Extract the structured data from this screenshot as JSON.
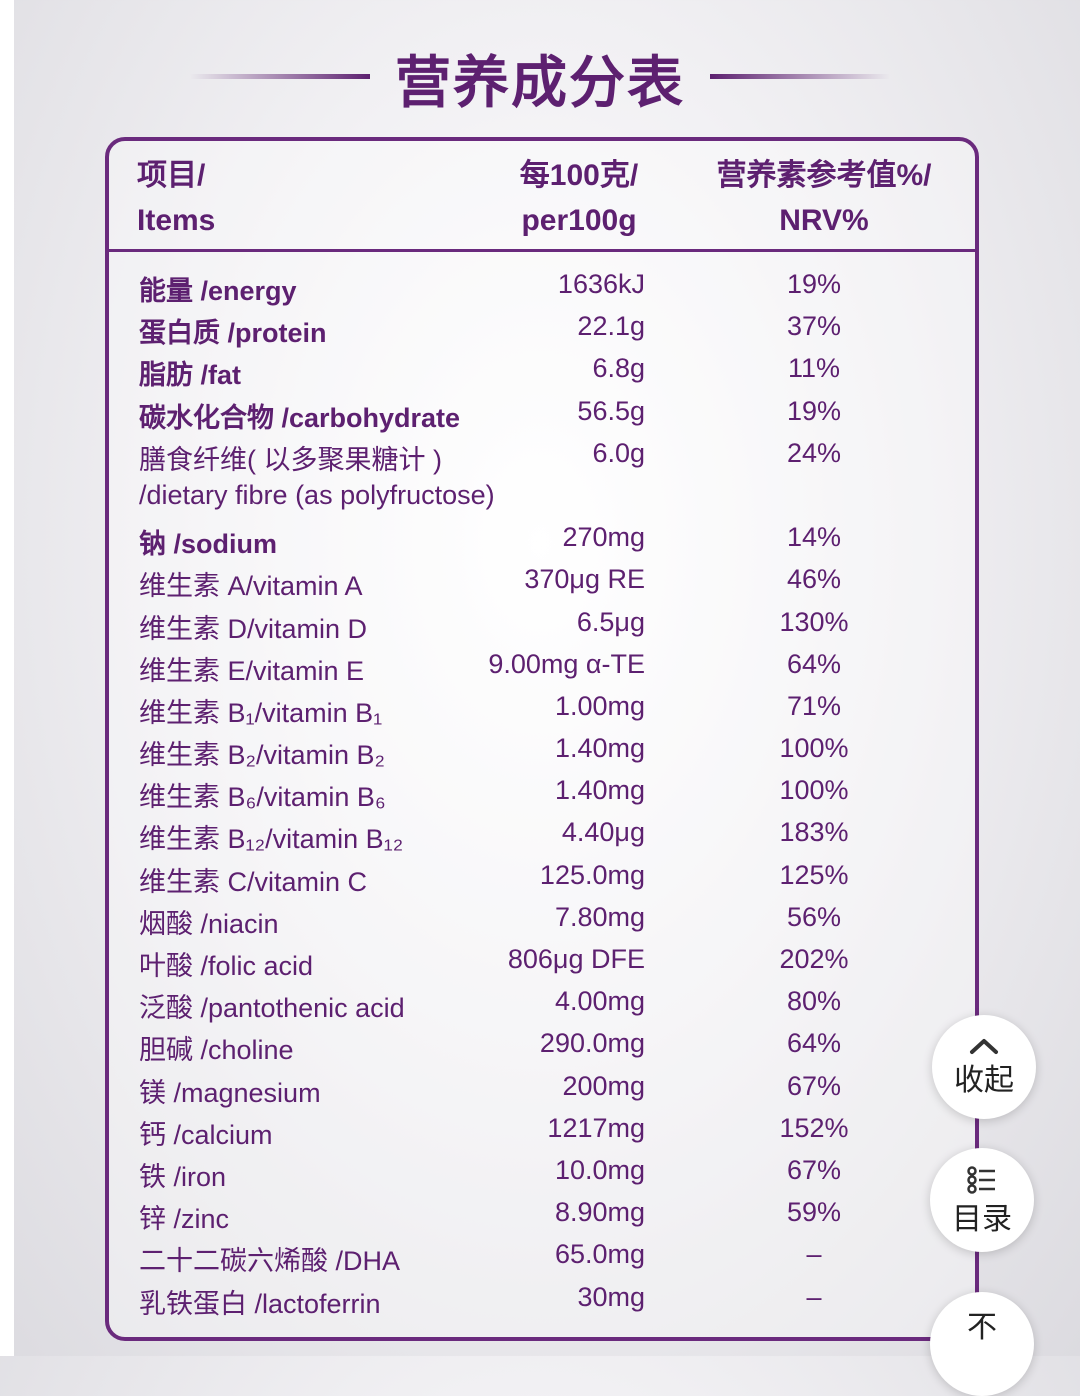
{
  "title": "营养成分表",
  "headers": {
    "item_cn": "项目/",
    "item_en": "Items",
    "per_cn": "每100克/",
    "per_en": "per100g",
    "nrv_cn": "营养素参考值%/",
    "nrv_en": "NRV%"
  },
  "rows": [
    {
      "name": "能量 /energy",
      "value": "1636kJ",
      "nrv": "19%",
      "bold": true
    },
    {
      "name": "蛋白质 /protein",
      "value": "22.1g",
      "nrv": "37%",
      "bold": true
    },
    {
      "name": "脂肪 /fat",
      "value": "6.8g",
      "nrv": "11%",
      "bold": true
    },
    {
      "name": "碳水化合物 /carbohydrate",
      "value": "56.5g",
      "nrv": "19%",
      "bold": true
    },
    {
      "name": "膳食纤维( 以多聚果糖计 )",
      "value": "6.0g",
      "nrv": "24%",
      "bold": false
    },
    {
      "name": "/dietary fibre (as polyfructose)",
      "value": "",
      "nrv": "",
      "bold": false
    },
    {
      "name": "钠 /sodium",
      "value": "270mg",
      "nrv": "14%",
      "bold": true
    },
    {
      "name": "维生素 A/vitamin A",
      "value": "370μg RE",
      "nrv": "46%",
      "bold": false
    },
    {
      "name": "维生素 D/vitamin D",
      "value": "6.5μg",
      "nrv": "130%",
      "bold": false
    },
    {
      "name": "维生素 E/vitamin E",
      "value": "9.00mg α-TE",
      "nrv": "64%",
      "bold": false
    },
    {
      "name": "维生素 B₁/vitamin B₁",
      "value": "1.00mg",
      "nrv": "71%",
      "bold": false
    },
    {
      "name": "维生素 B₂/vitamin B₂",
      "value": "1.40mg",
      "nrv": "100%",
      "bold": false
    },
    {
      "name": "维生素 B₆/vitamin B₆",
      "value": "1.40mg",
      "nrv": "100%",
      "bold": false
    },
    {
      "name": "维生素 B₁₂/vitamin B₁₂",
      "value": "4.40μg",
      "nrv": "183%",
      "bold": false
    },
    {
      "name": "维生素 C/vitamin C",
      "value": "125.0mg",
      "nrv": "125%",
      "bold": false
    },
    {
      "name": "烟酸 /niacin",
      "value": "7.80mg",
      "nrv": "56%",
      "bold": false
    },
    {
      "name": "叶酸 /folic acid",
      "value": "806μg DFE",
      "nrv": "202%",
      "bold": false
    },
    {
      "name": "泛酸 /pantothenic acid",
      "value": "4.00mg",
      "nrv": "80%",
      "bold": false
    },
    {
      "name": "胆碱 /choline",
      "value": "290.0mg",
      "nrv": "64%",
      "bold": false
    },
    {
      "name": "镁 /magnesium",
      "value": "200mg",
      "nrv": "67%",
      "bold": false
    },
    {
      "name": "钙 /calcium",
      "value": "1217mg",
      "nrv": "152%",
      "bold": false
    },
    {
      "name": "铁 /iron",
      "value": "10.0mg",
      "nrv": "67%",
      "bold": false
    },
    {
      "name": "锌 /zinc",
      "value": "8.90mg",
      "nrv": "59%",
      "bold": false
    },
    {
      "name": "二十二碳六烯酸 /DHA",
      "value": "65.0mg",
      "nrv": "–",
      "bold": false
    },
    {
      "name": "乳铁蛋白 /lactoferrin",
      "value": "30mg",
      "nrv": "–",
      "bold": false
    }
  ],
  "fabs": {
    "collapse_label": "收起",
    "toc_label": "目录",
    "bottom_label": "不"
  },
  "icons": {
    "collapse": "chevron-up-icon",
    "toc": "list-icon",
    "brand_color": "#5d2070"
  }
}
